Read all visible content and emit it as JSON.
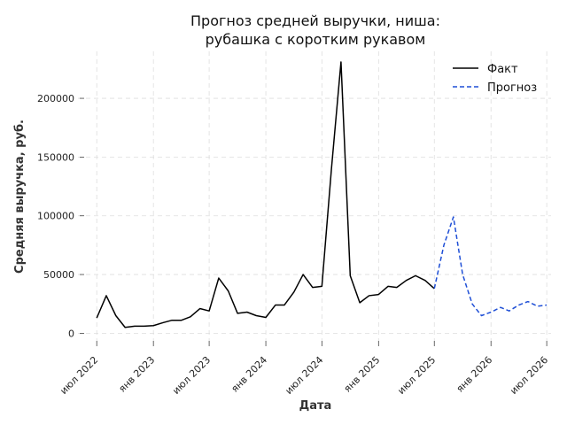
{
  "chart_data": {
    "type": "line",
    "title_lines": [
      "Прогноз средней выручки, ниша:",
      "рубашка с коротким рукавом"
    ],
    "xlabel": "Дата",
    "ylabel": "Средняя выручка, руб.",
    "ylim": [
      -8000,
      240000
    ],
    "xlim": [
      "2022-05-01",
      "2026-07-15"
    ],
    "grid": true,
    "legend_position": "top-right",
    "y_ticks": [
      {
        "value": 0,
        "label": "0"
      },
      {
        "value": 50000,
        "label": "50000"
      },
      {
        "value": 100000,
        "label": "100000"
      },
      {
        "value": 150000,
        "label": "150000"
      },
      {
        "value": 200000,
        "label": "200000"
      }
    ],
    "x_ticks": [
      {
        "value": "2022-07-01",
        "label": "июл 2022"
      },
      {
        "value": "2023-01-01",
        "label": "янв 2023"
      },
      {
        "value": "2023-07-01",
        "label": "июл 2023"
      },
      {
        "value": "2024-01-01",
        "label": "янв 2024"
      },
      {
        "value": "2024-07-01",
        "label": "июл 2024"
      },
      {
        "value": "2025-01-01",
        "label": "янв 2025"
      },
      {
        "value": "2025-07-01",
        "label": "июл 2025"
      },
      {
        "value": "2026-01-01",
        "label": "янв 2026"
      },
      {
        "value": "2026-07-01",
        "label": "июл 2026"
      }
    ],
    "series": [
      {
        "name": "Факт",
        "color": "#000000",
        "dash": "solid",
        "points": [
          {
            "x": "2022-07-01",
            "y": 13000
          },
          {
            "x": "2022-08-01",
            "y": 32000
          },
          {
            "x": "2022-09-01",
            "y": 15000
          },
          {
            "x": "2022-10-01",
            "y": 5000
          },
          {
            "x": "2022-11-01",
            "y": 6000
          },
          {
            "x": "2022-12-01",
            "y": 6000
          },
          {
            "x": "2023-01-01",
            "y": 6500
          },
          {
            "x": "2023-02-01",
            "y": 9000
          },
          {
            "x": "2023-03-01",
            "y": 11000
          },
          {
            "x": "2023-04-01",
            "y": 11000
          },
          {
            "x": "2023-05-01",
            "y": 14000
          },
          {
            "x": "2023-06-01",
            "y": 21000
          },
          {
            "x": "2023-07-01",
            "y": 19000
          },
          {
            "x": "2023-08-01",
            "y": 47000
          },
          {
            "x": "2023-09-01",
            "y": 36000
          },
          {
            "x": "2023-10-01",
            "y": 17000
          },
          {
            "x": "2023-11-01",
            "y": 18000
          },
          {
            "x": "2023-12-01",
            "y": 15000
          },
          {
            "x": "2024-01-01",
            "y": 13500
          },
          {
            "x": "2024-02-01",
            "y": 24000
          },
          {
            "x": "2024-03-01",
            "y": 24000
          },
          {
            "x": "2024-04-01",
            "y": 35000
          },
          {
            "x": "2024-05-01",
            "y": 50000
          },
          {
            "x": "2024-06-01",
            "y": 39000
          },
          {
            "x": "2024-07-01",
            "y": 40000
          },
          {
            "x": "2024-08-01",
            "y": 140000
          },
          {
            "x": "2024-09-01",
            "y": 231000
          },
          {
            "x": "2024-10-01",
            "y": 49000
          },
          {
            "x": "2024-11-01",
            "y": 26000
          },
          {
            "x": "2024-12-01",
            "y": 32000
          },
          {
            "x": "2025-01-01",
            "y": 33000
          },
          {
            "x": "2025-02-01",
            "y": 40000
          },
          {
            "x": "2025-03-01",
            "y": 39000
          },
          {
            "x": "2025-04-01",
            "y": 45000
          },
          {
            "x": "2025-05-01",
            "y": 49000
          },
          {
            "x": "2025-06-01",
            "y": 45000
          },
          {
            "x": "2025-07-01",
            "y": 38000
          }
        ]
      },
      {
        "name": "Прогноз",
        "color": "#1f4fd6",
        "dash": "dashed",
        "points": [
          {
            "x": "2025-07-01",
            "y": 38000
          },
          {
            "x": "2025-08-01",
            "y": 75000
          },
          {
            "x": "2025-09-01",
            "y": 99000
          },
          {
            "x": "2025-10-01",
            "y": 50000
          },
          {
            "x": "2025-11-01",
            "y": 25000
          },
          {
            "x": "2025-12-01",
            "y": 15000
          },
          {
            "x": "2026-01-01",
            "y": 18000
          },
          {
            "x": "2026-02-01",
            "y": 22000
          },
          {
            "x": "2026-03-01",
            "y": 19000
          },
          {
            "x": "2026-04-01",
            "y": 24000
          },
          {
            "x": "2026-05-01",
            "y": 27000
          },
          {
            "x": "2026-06-01",
            "y": 23000
          },
          {
            "x": "2026-07-01",
            "y": 24000
          }
        ]
      }
    ]
  }
}
